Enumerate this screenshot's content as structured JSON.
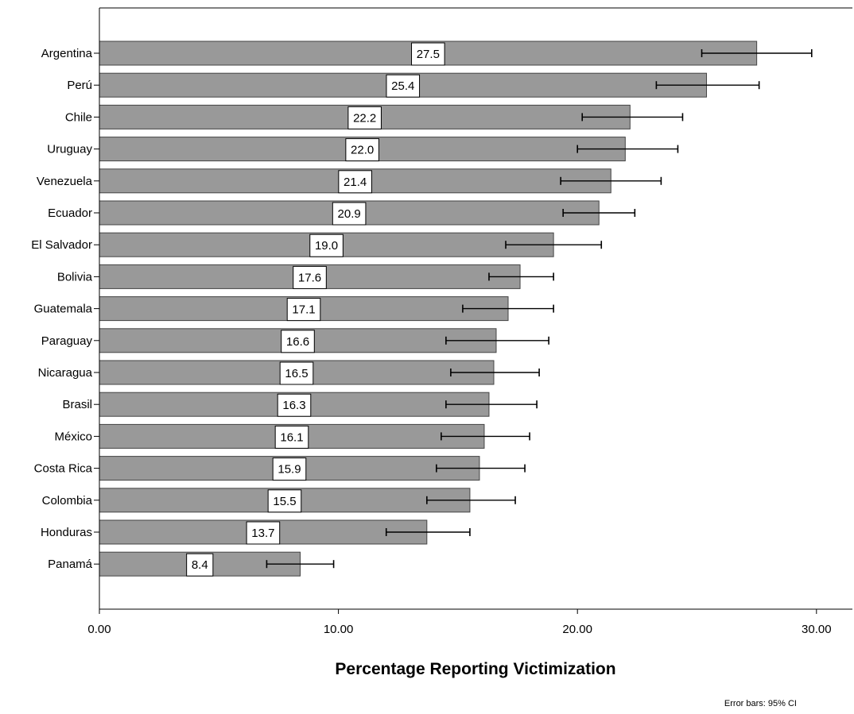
{
  "chart_data": {
    "type": "bar",
    "orientation": "horizontal",
    "categories": [
      "Argentina",
      "Perú",
      "Chile",
      "Uruguay",
      "Venezuela",
      "Ecuador",
      "El Salvador",
      "Bolivia",
      "Guatemala",
      "Paraguay",
      "Nicaragua",
      "Brasil",
      "México",
      "Costa Rica",
      "Colombia",
      "Honduras",
      "Panamá"
    ],
    "values": [
      27.5,
      25.4,
      22.2,
      22.0,
      21.4,
      20.9,
      19.0,
      17.6,
      17.1,
      16.6,
      16.5,
      16.3,
      16.1,
      15.9,
      15.5,
      13.7,
      8.4
    ],
    "value_labels": [
      "27.5",
      "25.4",
      "22.2",
      "22.0",
      "21.4",
      "20.9",
      "19.0",
      "17.6",
      "17.1",
      "16.6",
      "16.5",
      "16.3",
      "16.1",
      "15.9",
      "15.5",
      "13.7",
      "8.4"
    ],
    "ci_low": [
      25.2,
      23.3,
      20.2,
      20.0,
      19.3,
      19.4,
      17.0,
      16.3,
      15.2,
      14.5,
      14.7,
      14.5,
      14.3,
      14.1,
      13.7,
      12.0,
      7.0
    ],
    "ci_high": [
      29.8,
      27.6,
      24.4,
      24.2,
      23.5,
      22.4,
      21.0,
      19.0,
      19.0,
      18.8,
      18.4,
      18.3,
      18.0,
      17.8,
      17.4,
      15.5,
      9.8
    ],
    "xlim": [
      0,
      31.5
    ],
    "xticks": [
      0,
      10,
      20,
      30
    ],
    "xtick_labels": [
      "0.00",
      "10.00",
      "20.00",
      "30.00"
    ],
    "xlabel": "Percentage Reporting Victimization",
    "ylabel": "",
    "title": "",
    "note": "Error bars: 95% CI",
    "grid": false,
    "bar_color": "#999999",
    "bar_edge_color": "#444444",
    "error_bar_color": "#000000"
  }
}
